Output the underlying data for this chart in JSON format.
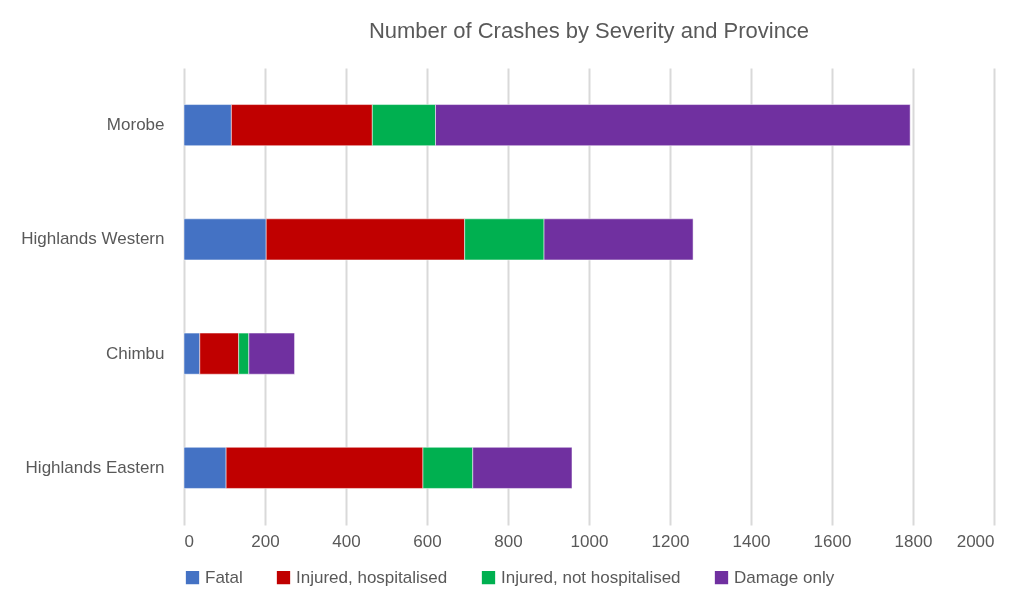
{
  "chart_data": {
    "type": "bar",
    "orientation": "horizontal",
    "stacked": true,
    "title": "Number of Crashes by Severity and Province",
    "categories": [
      "Morobe",
      "Highlands Western",
      "Chimbu",
      "Highlands Eastern"
    ],
    "series": [
      {
        "name": "Fatal",
        "color": "#4472c4",
        "values": [
          117,
          203,
          39,
          104
        ]
      },
      {
        "name": "Injured, hospitalised",
        "color": "#c00000",
        "values": [
          348,
          490,
          96,
          486
        ]
      },
      {
        "name": "Injured, not hospitalised",
        "color": "#00b050",
        "values": [
          156,
          196,
          25,
          123
        ]
      },
      {
        "name": "Damage only",
        "color": "#7030a0",
        "values": [
          1172,
          368,
          113,
          245
        ]
      }
    ],
    "xlim": [
      0,
      2000
    ],
    "xticks": [
      0,
      200,
      400,
      600,
      800,
      1000,
      1200,
      1400,
      1600,
      1800,
      2000
    ],
    "grid": "x",
    "legend": "bottom"
  }
}
